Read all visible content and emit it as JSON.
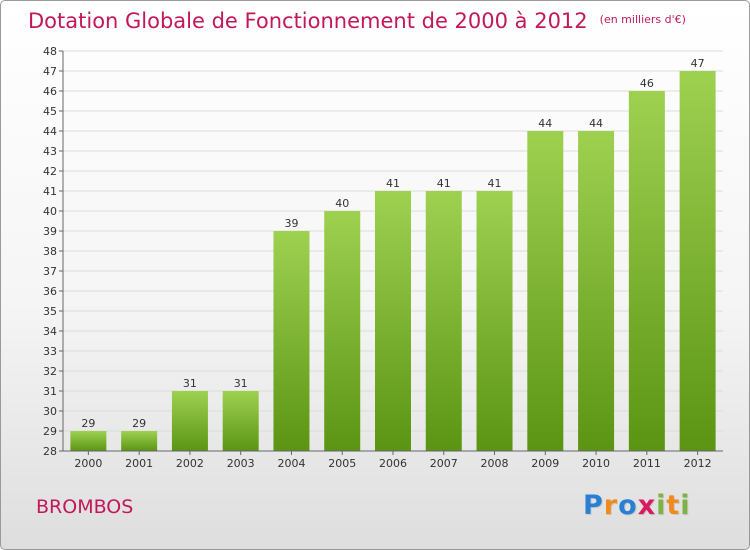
{
  "header": {
    "title": "Dotation Globale de Fonctionnement de 2000 à 2012",
    "subtitle": "(en milliers d'€)"
  },
  "footer": {
    "commune": "BROMBOS",
    "logo_text": "Proxiti",
    "logo_letters": [
      {
        "ch": "P",
        "color": "#2a7fd4"
      },
      {
        "ch": "r",
        "color": "#f08a1e"
      },
      {
        "ch": "o",
        "color": "#2a7fd4"
      },
      {
        "ch": "x",
        "color": "#d81b60"
      },
      {
        "ch": "i",
        "color": "#7cb342"
      },
      {
        "ch": "t",
        "color": "#f08a1e"
      },
      {
        "ch": "i",
        "color": "#7cb342"
      }
    ]
  },
  "colors": {
    "title": "#c2185b",
    "bar_top": "#9fd151",
    "bar_bottom": "#5b9413",
    "grid": "#dcdcdc",
    "axis": "#666666"
  },
  "chart_data": {
    "type": "bar",
    "categories": [
      "2000",
      "2001",
      "2002",
      "2003",
      "2004",
      "2005",
      "2006",
      "2007",
      "2008",
      "2009",
      "2010",
      "2011",
      "2012"
    ],
    "values": [
      29,
      29,
      31,
      31,
      39,
      40,
      41,
      41,
      41,
      44,
      44,
      46,
      47
    ],
    "ylim": [
      28,
      48
    ],
    "yticks": [
      28,
      29,
      30,
      31,
      32,
      33,
      34,
      35,
      36,
      37,
      38,
      39,
      40,
      41,
      42,
      43,
      44,
      45,
      46,
      47,
      48
    ],
    "grid": true,
    "data_labels": true
  }
}
